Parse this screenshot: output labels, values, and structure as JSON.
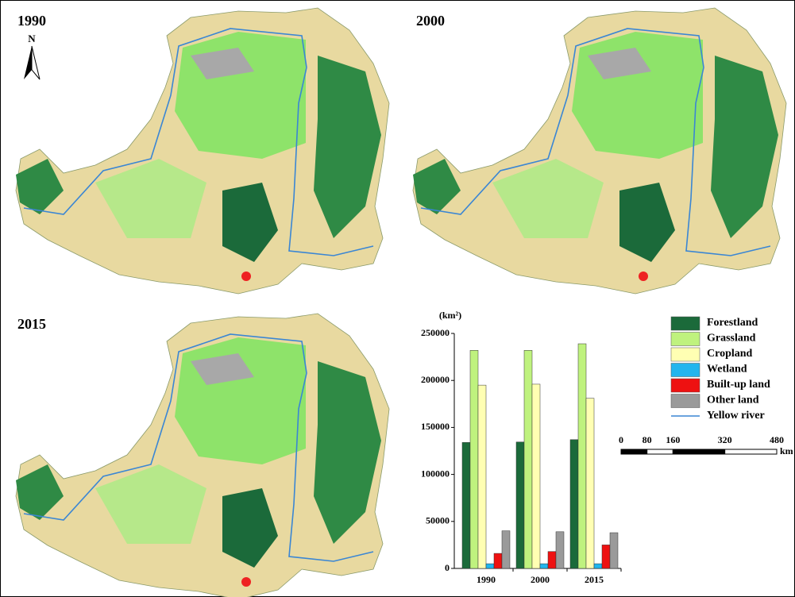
{
  "maps": [
    {
      "label": "1990"
    },
    {
      "label": "2000"
    },
    {
      "label": "2015"
    }
  ],
  "north_label": "N",
  "river": {
    "name": "Yellow river",
    "color": "#3a86d4"
  },
  "scale_bar": {
    "ticks": [
      0,
      80,
      160,
      320,
      480
    ],
    "unit": "km"
  },
  "chart_data": {
    "type": "bar",
    "y_label": "(km²)",
    "categories": [
      "1990",
      "2000",
      "2015"
    ],
    "series": [
      {
        "name": "Forestland",
        "color": "#1b6a3a",
        "values": [
          134000,
          134500,
          137000
        ]
      },
      {
        "name": "Grassland",
        "color": "#bff27e",
        "values": [
          232000,
          232000,
          239000
        ]
      },
      {
        "name": "Cropland",
        "color": "#ffffb3",
        "values": [
          195000,
          196000,
          181000
        ]
      },
      {
        "name": "Wetland",
        "color": "#22b5ee",
        "values": [
          5000,
          5000,
          5000
        ]
      },
      {
        "name": "Built-up land",
        "color": "#ee1111",
        "values": [
          16000,
          18000,
          25000
        ]
      },
      {
        "name": "Other land",
        "color": "#9a9a9a",
        "values": [
          40000,
          39000,
          38000
        ]
      }
    ],
    "ylim": [
      0,
      250000
    ],
    "yticks": [
      0,
      50000,
      100000,
      150000,
      200000,
      250000
    ]
  }
}
